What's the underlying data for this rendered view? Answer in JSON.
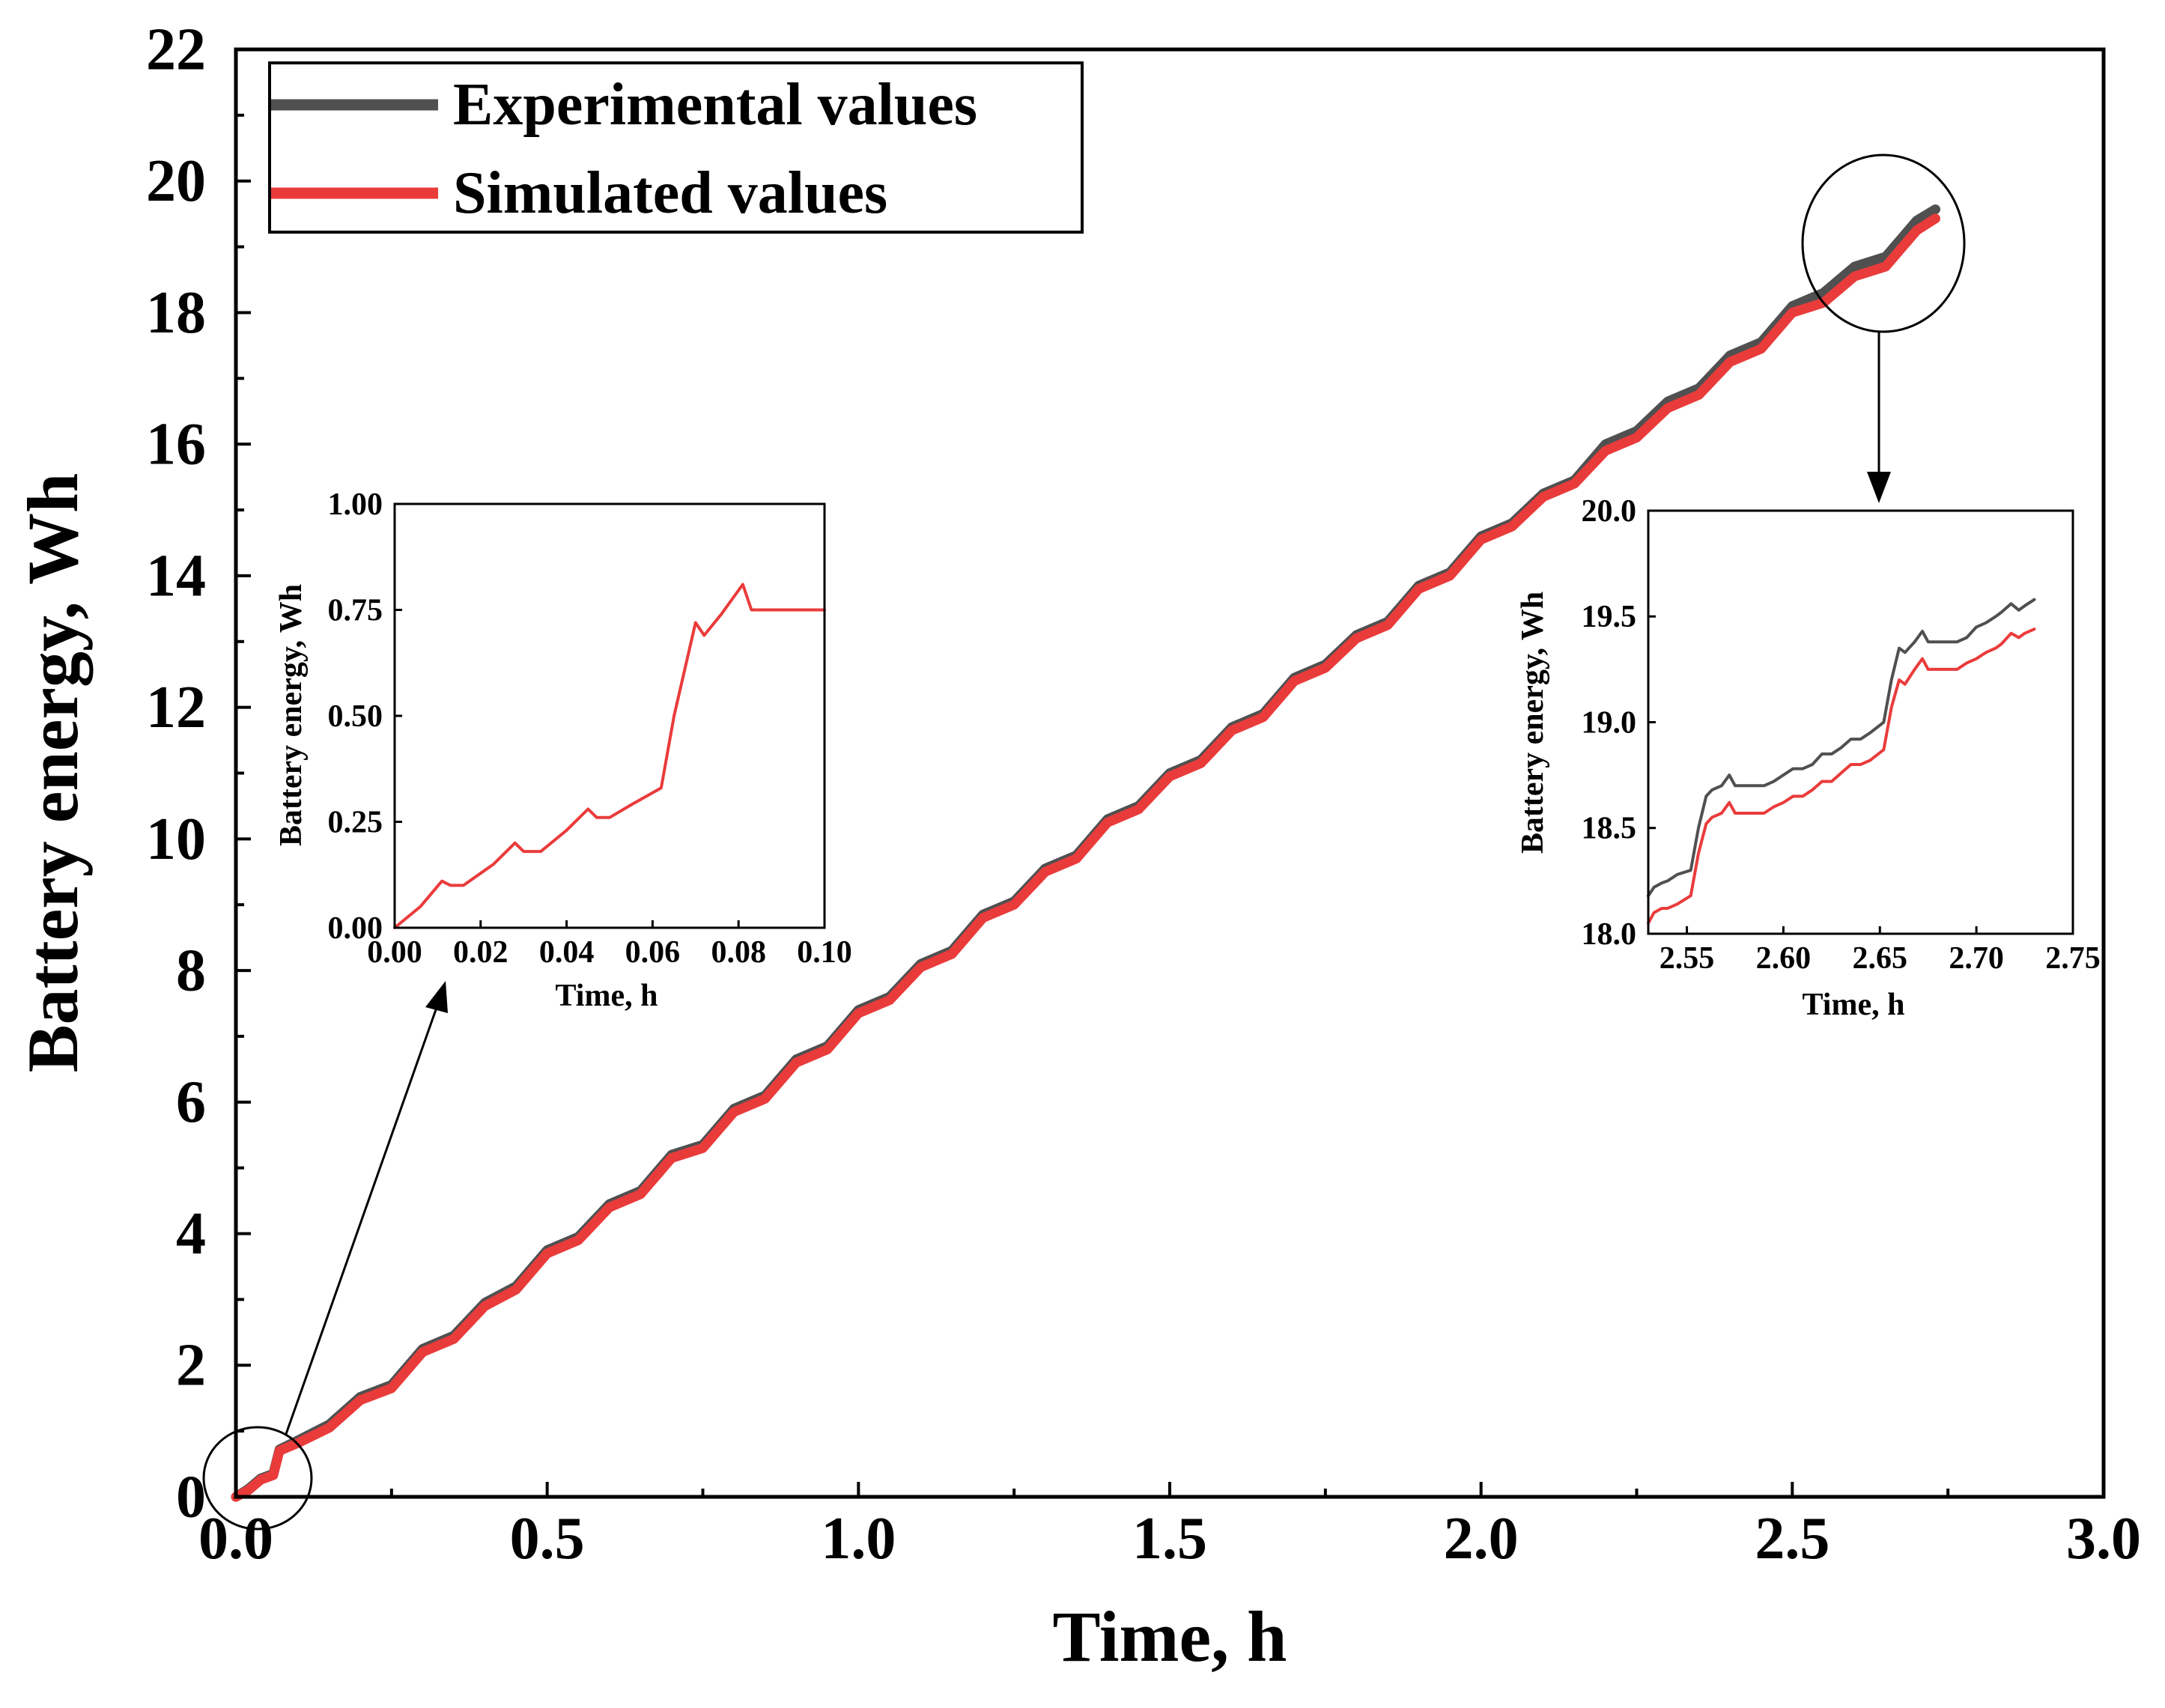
{
  "chart_data": [
    {
      "type": "line",
      "title": "",
      "xlabel": "Time, h",
      "ylabel": "Battery energy, Wh",
      "xlim": [
        0,
        3
      ],
      "ylim": [
        0,
        22
      ],
      "xticks": [
        0,
        0.5,
        1,
        1.5,
        2,
        2.5,
        3
      ],
      "xtick_labels": [
        "0.0",
        "0.5",
        "1.0",
        "1.5",
        "2.0",
        "2.5",
        "3.0"
      ],
      "yticks": [
        0,
        2,
        4,
        6,
        8,
        10,
        12,
        14,
        16,
        18,
        20,
        22
      ],
      "ytick_labels": [
        "0",
        "2",
        "4",
        "6",
        "8",
        "10",
        "12",
        "14",
        "16",
        "18",
        "20",
        "22"
      ],
      "grid": false,
      "legend": "top-left",
      "series": [
        {
          "name": "Experimental values",
          "color": "#505050",
          "x": [
            0,
            0.02,
            0.04,
            0.06,
            0.07,
            0.1,
            0.15,
            0.2,
            0.25,
            0.3,
            0.35,
            0.4,
            0.45,
            0.5,
            0.55,
            0.6,
            0.65,
            0.7,
            0.75,
            0.8,
            0.85,
            0.9,
            0.95,
            1.0,
            1.05,
            1.1,
            1.15,
            1.2,
            1.25,
            1.3,
            1.35,
            1.4,
            1.45,
            1.5,
            1.55,
            1.6,
            1.65,
            1.7,
            1.75,
            1.8,
            1.85,
            1.9,
            1.95,
            2.0,
            2.05,
            2.1,
            2.15,
            2.2,
            2.25,
            2.3,
            2.35,
            2.4,
            2.45,
            2.5,
            2.55,
            2.6,
            2.65,
            2.7,
            2.73
          ],
          "y": [
            0,
            0.12,
            0.28,
            0.35,
            0.72,
            0.86,
            1.1,
            1.52,
            1.7,
            2.25,
            2.45,
            2.95,
            3.2,
            3.75,
            3.95,
            4.45,
            4.65,
            5.2,
            5.35,
            5.9,
            6.1,
            6.65,
            6.85,
            7.4,
            7.6,
            8.1,
            8.3,
            8.85,
            9.05,
            9.55,
            9.75,
            10.3,
            10.5,
            11.0,
            11.2,
            11.7,
            11.9,
            12.45,
            12.65,
            13.1,
            13.3,
            13.85,
            14.05,
            14.6,
            14.8,
            15.25,
            15.45,
            16.0,
            16.2,
            16.65,
            16.85,
            17.35,
            17.55,
            18.1,
            18.3,
            18.7,
            18.85,
            19.4,
            19.57
          ]
        },
        {
          "name": "Simulated values",
          "color": "#ea3b3b",
          "x": [
            0,
            0.02,
            0.04,
            0.06,
            0.07,
            0.1,
            0.15,
            0.2,
            0.25,
            0.3,
            0.35,
            0.4,
            0.45,
            0.5,
            0.55,
            0.6,
            0.65,
            0.7,
            0.75,
            0.8,
            0.85,
            0.9,
            0.95,
            1.0,
            1.05,
            1.1,
            1.15,
            1.2,
            1.25,
            1.3,
            1.35,
            1.4,
            1.45,
            1.5,
            1.55,
            1.6,
            1.65,
            1.7,
            1.75,
            1.8,
            1.85,
            1.9,
            1.95,
            2.0,
            2.05,
            2.1,
            2.15,
            2.2,
            2.25,
            2.3,
            2.35,
            2.4,
            2.45,
            2.5,
            2.55,
            2.6,
            2.65,
            2.7,
            2.73
          ],
          "y": [
            0,
            0.1,
            0.26,
            0.33,
            0.7,
            0.82,
            1.05,
            1.47,
            1.65,
            2.2,
            2.4,
            2.9,
            3.15,
            3.7,
            3.9,
            4.4,
            4.6,
            5.15,
            5.3,
            5.85,
            6.05,
            6.6,
            6.8,
            7.35,
            7.55,
            8.05,
            8.25,
            8.8,
            9.0,
            9.5,
            9.7,
            10.25,
            10.45,
            10.95,
            11.15,
            11.65,
            11.85,
            12.4,
            12.6,
            13.05,
            13.25,
            13.8,
            14.0,
            14.55,
            14.75,
            15.2,
            15.4,
            15.9,
            16.1,
            16.55,
            16.75,
            17.25,
            17.45,
            18.0,
            18.15,
            18.55,
            18.7,
            19.25,
            19.43
          ]
        }
      ]
    },
    {
      "type": "line",
      "title": "",
      "xlabel": "Time, h",
      "ylabel": "Battery energy, Wh",
      "xlim": [
        0,
        0.1
      ],
      "ylim": [
        0,
        1
      ],
      "xticks": [
        0,
        0.02,
        0.04,
        0.06,
        0.08,
        0.1
      ],
      "xtick_labels": [
        "0.00",
        "0.02",
        "0.04",
        "0.06",
        "0.08",
        "0.10"
      ],
      "yticks": [
        0,
        0.25,
        0.5,
        0.75,
        1
      ],
      "ytick_labels": [
        "0.00",
        "0.25",
        "0.50",
        "0.75",
        "1.00"
      ],
      "series": [
        {
          "name": "Simulated values",
          "color": "#ea3b3b",
          "x": [
            0,
            0.006,
            0.011,
            0.013,
            0.016,
            0.023,
            0.028,
            0.03,
            0.034,
            0.04,
            0.045,
            0.047,
            0.05,
            0.055,
            0.062,
            0.065,
            0.07,
            0.072,
            0.076,
            0.081,
            0.083,
            0.1
          ],
          "y": [
            0,
            0.05,
            0.11,
            0.1,
            0.1,
            0.15,
            0.2,
            0.18,
            0.18,
            0.23,
            0.28,
            0.26,
            0.26,
            0.29,
            0.33,
            0.5,
            0.72,
            0.69,
            0.74,
            0.81,
            0.75,
            0.75
          ]
        }
      ]
    },
    {
      "type": "line",
      "title": "",
      "xlabel": "Time, h",
      "ylabel": "Battery energy, Wh",
      "xlim": [
        2.53,
        2.75
      ],
      "ylim": [
        18,
        20
      ],
      "xticks": [
        2.55,
        2.6,
        2.65,
        2.7,
        2.75
      ],
      "xtick_labels": [
        "2.55",
        "2.60",
        "2.65",
        "2.70",
        "2.75"
      ],
      "yticks": [
        18,
        18.5,
        19,
        19.5,
        20
      ],
      "ytick_labels": [
        "18.0",
        "18.5",
        "19.0",
        "19.5",
        "20.0"
      ],
      "series": [
        {
          "name": "Experimental values",
          "color": "#505050",
          "x": [
            2.53,
            2.533,
            2.537,
            2.54,
            2.545,
            2.552,
            2.556,
            2.56,
            2.563,
            2.568,
            2.572,
            2.575,
            2.58,
            2.59,
            2.595,
            2.6,
            2.605,
            2.61,
            2.615,
            2.62,
            2.625,
            2.63,
            2.635,
            2.64,
            2.645,
            2.652,
            2.656,
            2.66,
            2.663,
            2.668,
            2.672,
            2.675,
            2.68,
            2.69,
            2.695,
            2.7,
            2.705,
            2.71,
            2.713,
            2.718,
            2.722,
            2.725,
            2.73
          ],
          "y": [
            18.18,
            18.22,
            18.24,
            18.25,
            18.28,
            18.3,
            18.5,
            18.65,
            18.68,
            18.7,
            18.75,
            18.7,
            18.7,
            18.7,
            18.72,
            18.75,
            18.78,
            18.78,
            18.8,
            18.85,
            18.85,
            18.88,
            18.92,
            18.92,
            18.95,
            19.0,
            19.2,
            19.35,
            19.33,
            19.38,
            19.43,
            19.38,
            19.38,
            19.38,
            19.4,
            19.45,
            19.47,
            19.5,
            19.52,
            19.56,
            19.53,
            19.55,
            19.58
          ]
        },
        {
          "name": "Simulated values",
          "color": "#ea3b3b",
          "x": [
            2.53,
            2.533,
            2.537,
            2.54,
            2.545,
            2.552,
            2.556,
            2.56,
            2.563,
            2.568,
            2.572,
            2.575,
            2.58,
            2.59,
            2.595,
            2.6,
            2.605,
            2.61,
            2.615,
            2.62,
            2.625,
            2.63,
            2.635,
            2.64,
            2.645,
            2.652,
            2.656,
            2.66,
            2.663,
            2.668,
            2.672,
            2.675,
            2.68,
            2.69,
            2.695,
            2.7,
            2.705,
            2.71,
            2.713,
            2.718,
            2.722,
            2.725,
            2.73
          ],
          "y": [
            18.05,
            18.1,
            18.12,
            18.12,
            18.14,
            18.18,
            18.38,
            18.52,
            18.55,
            18.57,
            18.62,
            18.57,
            18.57,
            18.57,
            18.6,
            18.62,
            18.65,
            18.65,
            18.68,
            18.72,
            18.72,
            18.76,
            18.8,
            18.8,
            18.82,
            18.87,
            19.07,
            19.2,
            19.18,
            19.25,
            19.3,
            19.25,
            19.25,
            19.25,
            19.28,
            19.3,
            19.33,
            19.35,
            19.37,
            19.42,
            19.4,
            19.42,
            19.44
          ]
        }
      ]
    }
  ]
}
